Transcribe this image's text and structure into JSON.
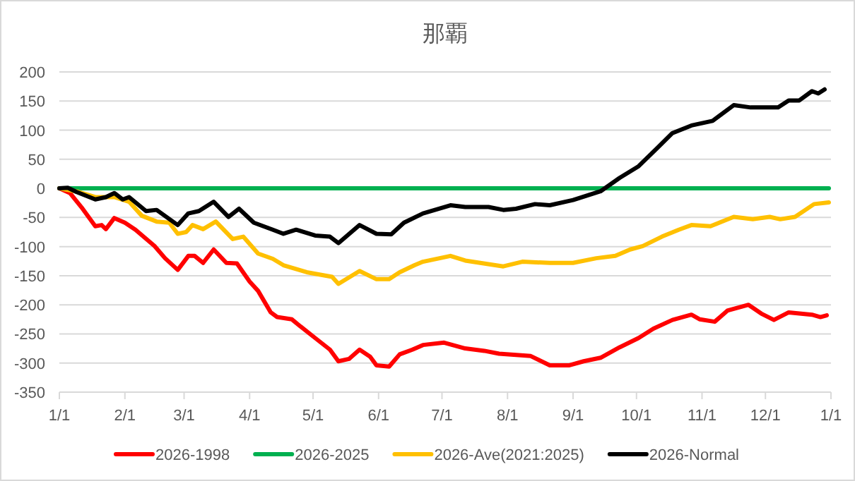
{
  "chart_data": {
    "type": "line",
    "title": "那覇",
    "xlim": [
      "2026-01-01",
      "2027-01-01"
    ],
    "xticks": [
      {
        "value": "2026-01-01",
        "label": "1/1"
      },
      {
        "value": "2026-02-01",
        "label": "2/1"
      },
      {
        "value": "2026-03-01",
        "label": "3/1"
      },
      {
        "value": "2026-04-01",
        "label": "4/1"
      },
      {
        "value": "2026-05-01",
        "label": "5/1"
      },
      {
        "value": "2026-06-01",
        "label": "6/1"
      },
      {
        "value": "2026-07-01",
        "label": "7/1"
      },
      {
        "value": "2026-08-01",
        "label": "8/1"
      },
      {
        "value": "2026-09-01",
        "label": "9/1"
      },
      {
        "value": "2026-10-01",
        "label": "10/1"
      },
      {
        "value": "2026-11-01",
        "label": "11/1"
      },
      {
        "value": "2026-12-01",
        "label": "12/1"
      },
      {
        "value": "2027-01-01",
        "label": "1/1"
      }
    ],
    "ylim": [
      -350,
      200
    ],
    "yticks": [
      -350,
      -300,
      -250,
      -200,
      -150,
      -100,
      -50,
      0,
      50,
      100,
      150,
      200
    ],
    "grid": "y",
    "legend": "bottom",
    "marker": "none",
    "line_style": "solid",
    "series": [
      {
        "name": "2026-1998",
        "color": "#ff0000",
        "x": [
          "2026-01-01",
          "2026-01-06",
          "2026-01-12",
          "2026-01-18",
          "2026-01-21",
          "2026-01-23",
          "2026-01-27",
          "2026-02-01",
          "2026-02-06",
          "2026-02-15",
          "2026-02-20",
          "2026-02-26",
          "2026-03-03",
          "2026-03-06",
          "2026-03-10",
          "2026-03-15",
          "2026-03-21",
          "2026-03-26",
          "2026-04-01",
          "2026-04-05",
          "2026-04-11",
          "2026-04-14",
          "2026-04-21",
          "2026-04-25",
          "2026-05-02",
          "2026-05-09",
          "2026-05-13",
          "2026-05-18",
          "2026-05-23",
          "2026-05-28",
          "2026-05-31",
          "2026-06-06",
          "2026-06-11",
          "2026-06-17",
          "2026-06-22",
          "2026-07-02",
          "2026-07-12",
          "2026-07-21",
          "2026-07-28",
          "2026-08-12",
          "2026-08-21",
          "2026-08-30",
          "2026-09-06",
          "2026-09-14",
          "2026-09-23",
          "2026-10-02",
          "2026-10-09",
          "2026-10-18",
          "2026-10-27",
          "2026-10-31",
          "2026-11-07",
          "2026-11-13",
          "2026-11-23",
          "2026-11-29",
          "2026-12-05",
          "2026-12-12",
          "2026-12-23",
          "2026-12-27",
          "2026-12-30"
        ],
        "values": [
          0,
          -8,
          -35,
          -65,
          -63,
          -70,
          -51,
          -59,
          -71,
          -99,
          -120,
          -140,
          -116,
          -116,
          -128,
          -105,
          -128,
          -129,
          -160,
          -176,
          -213,
          -221,
          -225,
          -237,
          -257,
          -277,
          -297,
          -293,
          -277,
          -289,
          -304,
          -306,
          -285,
          -277,
          -269,
          -265,
          -275,
          -279,
          -284,
          -288,
          -304,
          -304,
          -297,
          -291,
          -273,
          -257,
          -241,
          -226,
          -217,
          -225,
          -229,
          -210,
          -200,
          -215,
          -226,
          -213,
          -217,
          -221,
          -218
        ]
      },
      {
        "name": "2026-2025",
        "color": "#00b050",
        "x": [
          "2026-01-01",
          "2026-12-31"
        ],
        "values": [
          0,
          0
        ]
      },
      {
        "name": "2026-Ave(2021:2025)",
        "color": "#ffc000",
        "x": [
          "2026-01-01",
          "2026-01-10",
          "2026-01-18",
          "2026-01-27",
          "2026-02-03",
          "2026-02-09",
          "2026-02-16",
          "2026-02-22",
          "2026-02-26",
          "2026-03-02",
          "2026-03-05",
          "2026-03-10",
          "2026-03-16",
          "2026-03-24",
          "2026-03-29",
          "2026-04-05",
          "2026-04-12",
          "2026-04-17",
          "2026-04-28",
          "2026-05-04",
          "2026-05-10",
          "2026-05-13",
          "2026-05-23",
          "2026-05-31",
          "2026-06-06",
          "2026-06-11",
          "2026-06-18",
          "2026-06-22",
          "2026-07-05",
          "2026-07-12",
          "2026-07-30",
          "2026-08-08",
          "2026-08-21",
          "2026-09-01",
          "2026-09-12",
          "2026-09-21",
          "2026-09-28",
          "2026-10-04",
          "2026-10-13",
          "2026-10-21",
          "2026-10-27",
          "2026-11-05",
          "2026-11-16",
          "2026-11-25",
          "2026-12-03",
          "2026-12-08",
          "2026-12-15",
          "2026-12-24",
          "2026-12-31"
        ],
        "values": [
          0,
          -6,
          -15,
          -15,
          -23,
          -47,
          -57,
          -59,
          -78,
          -75,
          -63,
          -70,
          -57,
          -87,
          -83,
          -112,
          -121,
          -132,
          -144,
          -148,
          -152,
          -164,
          -142,
          -156,
          -156,
          -144,
          -132,
          -126,
          -116,
          -124,
          -134,
          -126,
          -128,
          -128,
          -120,
          -116,
          -105,
          -99,
          -83,
          -71,
          -63,
          -65,
          -49,
          -53,
          -49,
          -53,
          -49,
          -27,
          -24
        ]
      },
      {
        "name": "2026-Normal",
        "color": "#000000",
        "x": [
          "2026-01-01",
          "2026-01-05",
          "2026-01-09",
          "2026-01-18",
          "2026-01-23",
          "2026-01-27",
          "2026-01-31",
          "2026-02-03",
          "2026-02-11",
          "2026-02-16",
          "2026-02-26",
          "2026-03-03",
          "2026-03-08",
          "2026-03-15",
          "2026-03-22",
          "2026-03-27",
          "2026-04-03",
          "2026-04-12",
          "2026-04-17",
          "2026-04-23",
          "2026-05-02",
          "2026-05-09",
          "2026-05-13",
          "2026-05-23",
          "2026-05-31",
          "2026-06-07",
          "2026-06-13",
          "2026-06-22",
          "2026-07-05",
          "2026-07-12",
          "2026-07-23",
          "2026-07-30",
          "2026-08-05",
          "2026-08-14",
          "2026-08-21",
          "2026-09-01",
          "2026-09-14",
          "2026-09-23",
          "2026-10-02",
          "2026-10-11",
          "2026-10-18",
          "2026-10-27",
          "2026-11-06",
          "2026-11-16",
          "2026-11-24",
          "2026-11-30",
          "2026-12-07",
          "2026-12-12",
          "2026-12-17",
          "2026-12-23",
          "2026-12-26",
          "2026-12-29"
        ],
        "values": [
          0,
          1,
          -6,
          -19,
          -15,
          -8,
          -19,
          -15,
          -39,
          -37,
          -63,
          -43,
          -39,
          -23,
          -49,
          -35,
          -59,
          -71,
          -78,
          -71,
          -81,
          -83,
          -94,
          -63,
          -78,
          -79,
          -59,
          -43,
          -29,
          -32,
          -32,
          -37,
          -35,
          -27,
          -29,
          -20,
          -5,
          18,
          38,
          70,
          95,
          108,
          116,
          143,
          139,
          139,
          139,
          151,
          151,
          167,
          163,
          170
        ]
      }
    ]
  }
}
